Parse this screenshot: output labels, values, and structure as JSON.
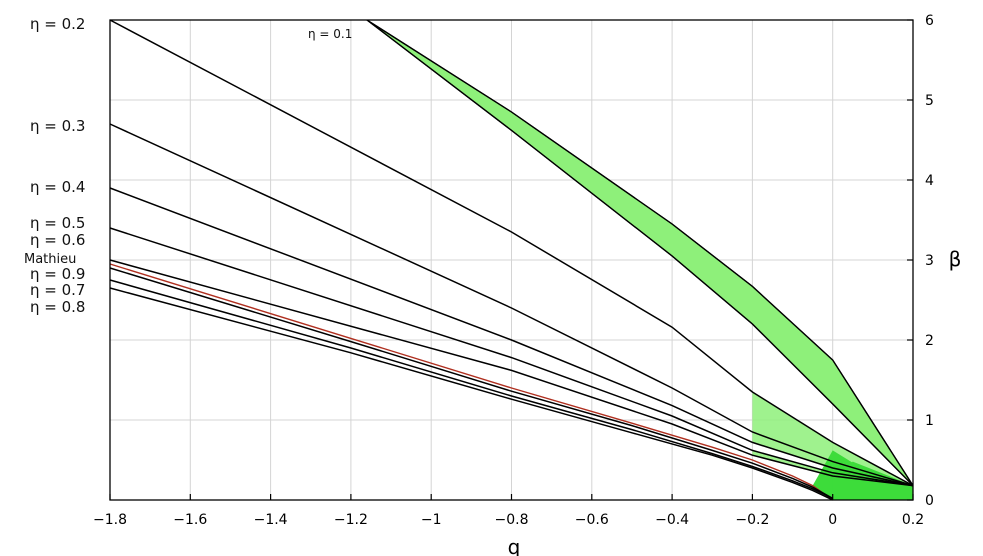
{
  "chart_data": {
    "type": "line",
    "title": "",
    "xlabel": "q",
    "ylabel": "β",
    "xlim": [
      -1.8,
      0.2
    ],
    "ylim": [
      0,
      6
    ],
    "x_ticks": [
      -1.8,
      -1.6,
      -1.4,
      -1.2,
      -1,
      -0.8,
      -0.6,
      -0.4,
      -0.2,
      0,
      0.2
    ],
    "x_tick_labels": [
      "−1.8",
      "−1.6",
      "−1.4",
      "−1.2",
      "−1",
      "−0.8",
      "−0.6",
      "−0.4",
      "−0.2",
      "0",
      "0.2"
    ],
    "y_ticks": [
      0,
      1,
      2,
      3,
      4,
      5,
      6
    ],
    "y_tick_labels": [
      "0",
      "1",
      "2",
      "3",
      "4",
      "5",
      "6"
    ],
    "y_axis_side": "right",
    "grid": true,
    "colors": {
      "curve": "#000000",
      "band_fill": "#8ef07a",
      "band_fill_dark": "#3ddc3a",
      "mathieu_curve": "#b03020",
      "grid": "#d4d4d4"
    },
    "series": [
      {
        "name": "η = 0.1",
        "x": [
          -1.16,
          -0.8,
          -0.4,
          -0.2,
          0,
          0.2
        ],
        "y_lower": [
          6.0,
          4.62,
          3.05,
          2.2,
          1.2,
          0.18
        ],
        "y_upper": [
          6.0,
          4.85,
          3.45,
          2.67,
          1.75,
          0.18
        ]
      },
      {
        "name": "η = 0.2",
        "x": [
          -1.8,
          -0.8,
          -0.4,
          -0.2,
          0,
          0.2
        ],
        "y": [
          6.0,
          3.35,
          2.16,
          1.35,
          0.72,
          0.18
        ]
      },
      {
        "name": "η = 0.3",
        "x": [
          -1.8,
          -0.8,
          -0.4,
          -0.2,
          0,
          0.2
        ],
        "y": [
          4.7,
          2.4,
          1.4,
          0.85,
          0.48,
          0.18
        ]
      },
      {
        "name": "η = 0.4",
        "x": [
          -1.8,
          -0.8,
          -0.4,
          -0.2,
          0,
          0.2
        ],
        "y": [
          3.9,
          2.0,
          1.18,
          0.72,
          0.4,
          0.18
        ]
      },
      {
        "name": "η = 0.5",
        "x": [
          -1.8,
          -0.8,
          -0.4,
          -0.2,
          0,
          0.2
        ],
        "y": [
          3.4,
          1.78,
          1.05,
          0.62,
          0.34,
          0.18
        ]
      },
      {
        "name": "η = 0.6",
        "x": [
          -1.8,
          -0.8,
          -0.4,
          -0.2,
          0,
          0.2
        ],
        "y": [
          3.0,
          1.62,
          0.95,
          0.56,
          0.3,
          0.18
        ]
      },
      {
        "name": "Mathieu",
        "x": [
          -1.8,
          -1.2,
          -0.8,
          -0.5,
          -0.3,
          -0.2,
          -0.1,
          -0.05,
          0
        ],
        "y": [
          2.95,
          2.02,
          1.4,
          0.96,
          0.66,
          0.5,
          0.3,
          0.18,
          0.0
        ]
      },
      {
        "name": "η = 0.9",
        "x": [
          -1.8,
          -1.2,
          -0.8,
          -0.5,
          -0.3,
          -0.2,
          -0.1,
          -0.05,
          0
        ],
        "y": [
          2.9,
          1.98,
          1.36,
          0.93,
          0.62,
          0.46,
          0.27,
          0.16,
          0.02
        ]
      },
      {
        "name": "η = 0.7",
        "x": [
          -1.8,
          -1.2,
          -0.8,
          -0.5,
          -0.3,
          -0.2,
          -0.1,
          -0.05,
          0
        ],
        "y": [
          2.75,
          1.9,
          1.3,
          0.88,
          0.58,
          0.42,
          0.24,
          0.14,
          0.02
        ]
      },
      {
        "name": "η = 0.8",
        "x": [
          -1.8,
          -1.2,
          -0.8,
          -0.5,
          -0.3,
          -0.2,
          -0.1,
          -0.05,
          0
        ],
        "y": [
          2.65,
          1.84,
          1.26,
          0.84,
          0.56,
          0.4,
          0.22,
          0.12,
          0.0
        ]
      }
    ]
  },
  "labels": {
    "eta_01": "η = 0.1",
    "eta_02": "η = 0.2",
    "eta_03": "η = 0.3",
    "eta_04": "η = 0.4",
    "eta_05": "η = 0.5",
    "eta_06": "η = 0.6",
    "mathieu": "Mathieu",
    "eta_09": "η = 0.9",
    "eta_07": "η = 0.7",
    "eta_08": "η = 0.8"
  }
}
